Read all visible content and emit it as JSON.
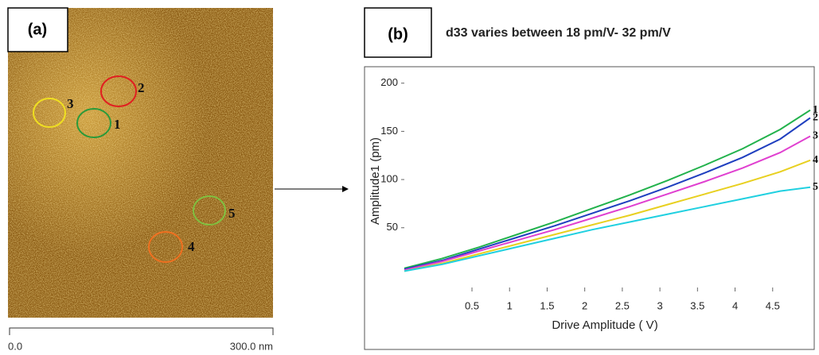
{
  "panel_a": {
    "label": "(a)",
    "markers": [
      "1",
      "2",
      "3",
      "4",
      "5"
    ],
    "scale_start": "0.0",
    "scale_end": "300.0 nm"
  },
  "panel_b": {
    "label": "(b)"
  },
  "chart_data": {
    "type": "line",
    "title": "d33 varies between 18 pm/V- 32 pm/V",
    "x_label": "Drive Amplitude ( V)",
    "y_label": "Amplitude1  (pm)",
    "x": [
      -0.4,
      0.1,
      0.6,
      1.1,
      1.6,
      2.1,
      2.6,
      3.1,
      3.6,
      4.1,
      4.6,
      5.0
    ],
    "series": [
      {
        "name": "1",
        "color": "#22b24c",
        "values": [
          8,
          18,
          30,
          43,
          56,
          70,
          84,
          99,
          115,
          132,
          152,
          172
        ]
      },
      {
        "name": "2",
        "color": "#1f3fbf",
        "values": [
          7,
          16,
          28,
          40,
          52,
          65,
          78,
          92,
          107,
          123,
          142,
          164
        ]
      },
      {
        "name": "3",
        "color": "#e040d0",
        "values": [
          6,
          15,
          26,
          37,
          48,
          60,
          72,
          85,
          98,
          112,
          128,
          145
        ]
      },
      {
        "name": "4",
        "color": "#e8d020",
        "values": [
          5,
          13,
          23,
          33,
          43,
          53,
          63,
          74,
          85,
          96,
          108,
          120
        ]
      },
      {
        "name": "5",
        "color": "#20d0e0",
        "values": [
          5,
          12,
          21,
          30,
          39,
          48,
          56,
          64,
          72,
          80,
          88,
          92
        ]
      }
    ],
    "xlim": [
      -0.4,
      5.0
    ],
    "ylim": [
      -12,
      208
    ],
    "xticks": [
      0.5,
      1,
      1.5,
      2,
      2.5,
      3,
      3.5,
      4,
      4.5
    ],
    "yticks": [
      50,
      100,
      150,
      200
    ]
  }
}
